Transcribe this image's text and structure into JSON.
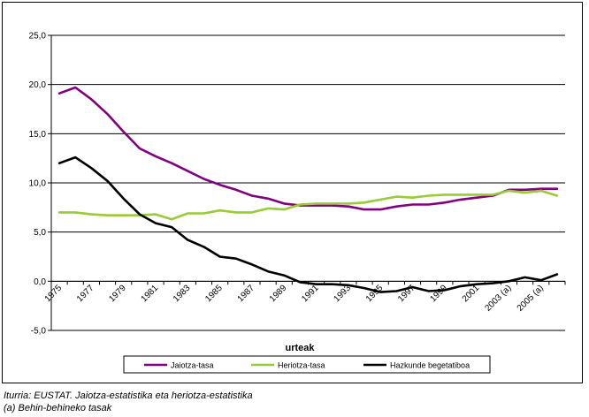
{
  "chart_data": {
    "type": "line",
    "title": "",
    "xlabel": "urteak",
    "ylabel": "",
    "ylim": [
      -5,
      25
    ],
    "yticks": [
      "25,0",
      "20,0",
      "15,0",
      "10,0",
      "5,0",
      "0,0",
      "-5,0"
    ],
    "ytick_values": [
      25,
      20,
      15,
      10,
      5,
      0,
      -5
    ],
    "xtick_labels": [
      "1975",
      "1977",
      "1979",
      "1981",
      "1983",
      "1985",
      "1987",
      "1989",
      "1991",
      "1993",
      "1995",
      "1997",
      "1999",
      "2001",
      "2003 (a)",
      "2005 (a)"
    ],
    "grid": true,
    "legend_position": "bottom",
    "x": [
      1975,
      1976,
      1977,
      1978,
      1979,
      1980,
      1981,
      1982,
      1983,
      1984,
      1985,
      1986,
      1987,
      1988,
      1989,
      1990,
      1991,
      1992,
      1993,
      1994,
      1995,
      1996,
      1997,
      1998,
      1999,
      2000,
      2001,
      2002,
      2003,
      2004,
      2005,
      2006
    ],
    "series": [
      {
        "name": "Jaiotza-tasa",
        "color": "#800080",
        "values": [
          19.1,
          19.7,
          18.5,
          17.0,
          15.2,
          13.5,
          12.7,
          12.0,
          11.2,
          10.4,
          9.8,
          9.3,
          8.7,
          8.4,
          7.9,
          7.7,
          7.7,
          7.7,
          7.6,
          7.3,
          7.3,
          7.6,
          7.8,
          7.8,
          8.0,
          8.3,
          8.5,
          8.7,
          9.3,
          9.3,
          9.4,
          9.4
        ]
      },
      {
        "name": "Heriotza-tasa",
        "color": "#99CC33",
        "values": [
          7.0,
          7.0,
          6.8,
          6.7,
          6.7,
          6.7,
          6.8,
          6.3,
          6.9,
          6.9,
          7.2,
          7.0,
          7.0,
          7.4,
          7.3,
          7.8,
          7.9,
          7.9,
          7.9,
          8.0,
          8.3,
          8.6,
          8.5,
          8.7,
          8.8,
          8.8,
          8.8,
          8.8,
          9.2,
          9.0,
          9.2,
          8.7
        ]
      },
      {
        "name": "Hazkunde begetatiboa",
        "color": "#000000",
        "values": [
          12.0,
          12.6,
          11.5,
          10.2,
          8.4,
          6.8,
          5.9,
          5.5,
          4.2,
          3.5,
          2.5,
          2.3,
          1.7,
          1.0,
          0.6,
          -0.1,
          -0.3,
          -0.3,
          -0.4,
          -0.7,
          -1.1,
          -1.0,
          -0.6,
          -1.0,
          -0.9,
          -0.5,
          -0.3,
          -0.2,
          0.0,
          0.4,
          0.1,
          0.7
        ]
      }
    ]
  },
  "source_lines": [
    "Iturria: EUSTAT. Jaiotza-estatistika eta heriotza-estatistika",
    "(a) Behin-behineko tasak"
  ]
}
